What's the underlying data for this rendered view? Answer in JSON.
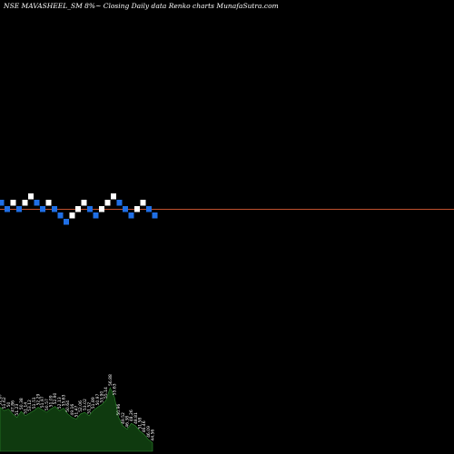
{
  "chart_data": {
    "type": "renko",
    "title": "NSE MAVASHEEL_SM 8%~  Closing Daily data  Renko  charts MunafaSutra.com",
    "colors": {
      "background": "#000000",
      "up_brick": "#ffffff",
      "down_brick": "#1f6fe6",
      "last_price_line": "#c0502e",
      "volume_fill": "#0f3a0f",
      "volume_edge": "#2e8b2e"
    },
    "bricks": [
      {
        "level": 0,
        "dir": "down"
      },
      {
        "level": -1,
        "dir": "down"
      },
      {
        "level": 0,
        "dir": "up"
      },
      {
        "level": -1,
        "dir": "down"
      },
      {
        "level": 0,
        "dir": "up"
      },
      {
        "level": 1,
        "dir": "up"
      },
      {
        "level": 0,
        "dir": "down"
      },
      {
        "level": -1,
        "dir": "down"
      },
      {
        "level": 0,
        "dir": "up"
      },
      {
        "level": -1,
        "dir": "down"
      },
      {
        "level": -2,
        "dir": "down"
      },
      {
        "level": -3,
        "dir": "down"
      },
      {
        "level": -2,
        "dir": "up"
      },
      {
        "level": -1,
        "dir": "up"
      },
      {
        "level": 0,
        "dir": "up"
      },
      {
        "level": -1,
        "dir": "down"
      },
      {
        "level": -2,
        "dir": "down"
      },
      {
        "level": -1,
        "dir": "up"
      },
      {
        "level": 0,
        "dir": "up"
      },
      {
        "level": 1,
        "dir": "up"
      },
      {
        "level": 0,
        "dir": "down"
      },
      {
        "level": -1,
        "dir": "down"
      },
      {
        "level": -2,
        "dir": "down"
      },
      {
        "level": -1,
        "dir": "up"
      },
      {
        "level": 0,
        "dir": "up"
      },
      {
        "level": -1,
        "dir": "down"
      },
      {
        "level": -2,
        "dir": "down"
      }
    ],
    "last_price_level": -1.5,
    "volume": [
      {
        "value": 52,
        "label": "52.67"
      },
      {
        "value": 48,
        "label": "51.62"
      },
      {
        "value": 50,
        "label": "50"
      },
      {
        "value": 44,
        "label": "47.86"
      },
      {
        "value": 40,
        "label": "51.23"
      },
      {
        "value": 47,
        "label": "50.38"
      },
      {
        "value": 42,
        "label": "51.14"
      },
      {
        "value": 45,
        "label": "53.12"
      },
      {
        "value": 48,
        "label": "51.51"
      },
      {
        "value": 52,
        "label": "52.29"
      },
      {
        "value": 49,
        "label": "51.97"
      },
      {
        "value": 46,
        "label": "50.57"
      },
      {
        "value": 50,
        "label": "51.09"
      },
      {
        "value": 53,
        "label": "52.90"
      },
      {
        "value": 48,
        "label": "52.13"
      },
      {
        "value": 51,
        "label": "55.63"
      },
      {
        "value": 44,
        "label": "50.64"
      },
      {
        "value": 40,
        "label": "49.16"
      },
      {
        "value": 38,
        "label": "51.47"
      },
      {
        "value": 44,
        "label": "52.06"
      },
      {
        "value": 46,
        "label": "53.02"
      },
      {
        "value": 42,
        "label": "51.52"
      },
      {
        "value": 48,
        "label": "51.89"
      },
      {
        "value": 52,
        "label": "50.97"
      },
      {
        "value": 55,
        "label": "53.90"
      },
      {
        "value": 60,
        "label": "55.14"
      },
      {
        "value": 75,
        "label": "56.88"
      },
      {
        "value": 64,
        "label": "55.63"
      },
      {
        "value": 40,
        "label": "50.96"
      },
      {
        "value": 30,
        "label": "49.52"
      },
      {
        "value": 26,
        "label": "46.38"
      },
      {
        "value": 33,
        "label": "48.26"
      },
      {
        "value": 30,
        "label": "48.81"
      },
      {
        "value": 24,
        "label": "51.58"
      },
      {
        "value": 20,
        "label": "46.46"
      },
      {
        "value": 14,
        "label": "46.09"
      },
      {
        "value": 10,
        "label": "44.56"
      }
    ]
  }
}
